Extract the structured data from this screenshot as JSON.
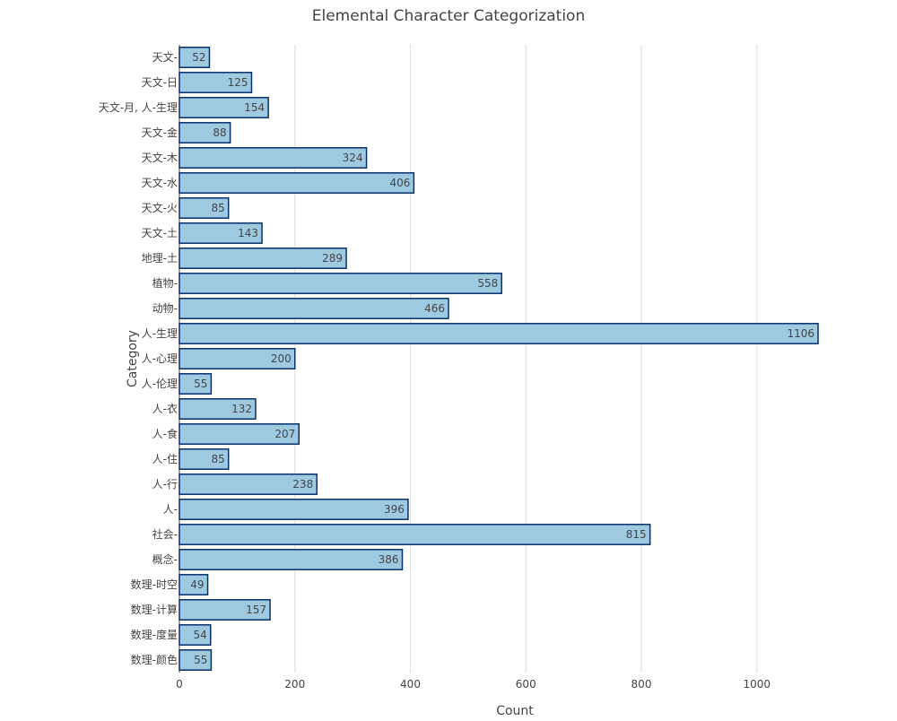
{
  "chart_data": {
    "type": "bar",
    "orientation": "horizontal",
    "title": "Elemental Character Categorization",
    "xlabel": "Count",
    "ylabel": "Category",
    "xlim": [
      0,
      1106
    ],
    "x_ticks": [
      0,
      200,
      400,
      600,
      800,
      1000
    ],
    "grid": "vertical",
    "legend": "none",
    "bar_fill": "#9ecae1",
    "bar_stroke": "#08306b",
    "grid_color": "#dddddd",
    "text_color": "#444444",
    "categories": [
      "天文-",
      "天文-日",
      "天文-月, 人-生理",
      "天文-金",
      "天文-木",
      "天文-水",
      "天文-火",
      "天文-土",
      "地理-土",
      "植物-",
      "动物-",
      "人-生理",
      "人-心理",
      "人-伦理",
      "人-衣",
      "人-食",
      "人-住",
      "人-行",
      "人-",
      "社会-",
      "概念-",
      "数理-时空",
      "数理-计算",
      "数理-度量",
      "数理-颜色"
    ],
    "values": [
      52,
      125,
      154,
      88,
      324,
      406,
      85,
      143,
      289,
      558,
      466,
      1106,
      200,
      55,
      132,
      207,
      85,
      238,
      396,
      815,
      386,
      49,
      157,
      54,
      55
    ]
  }
}
